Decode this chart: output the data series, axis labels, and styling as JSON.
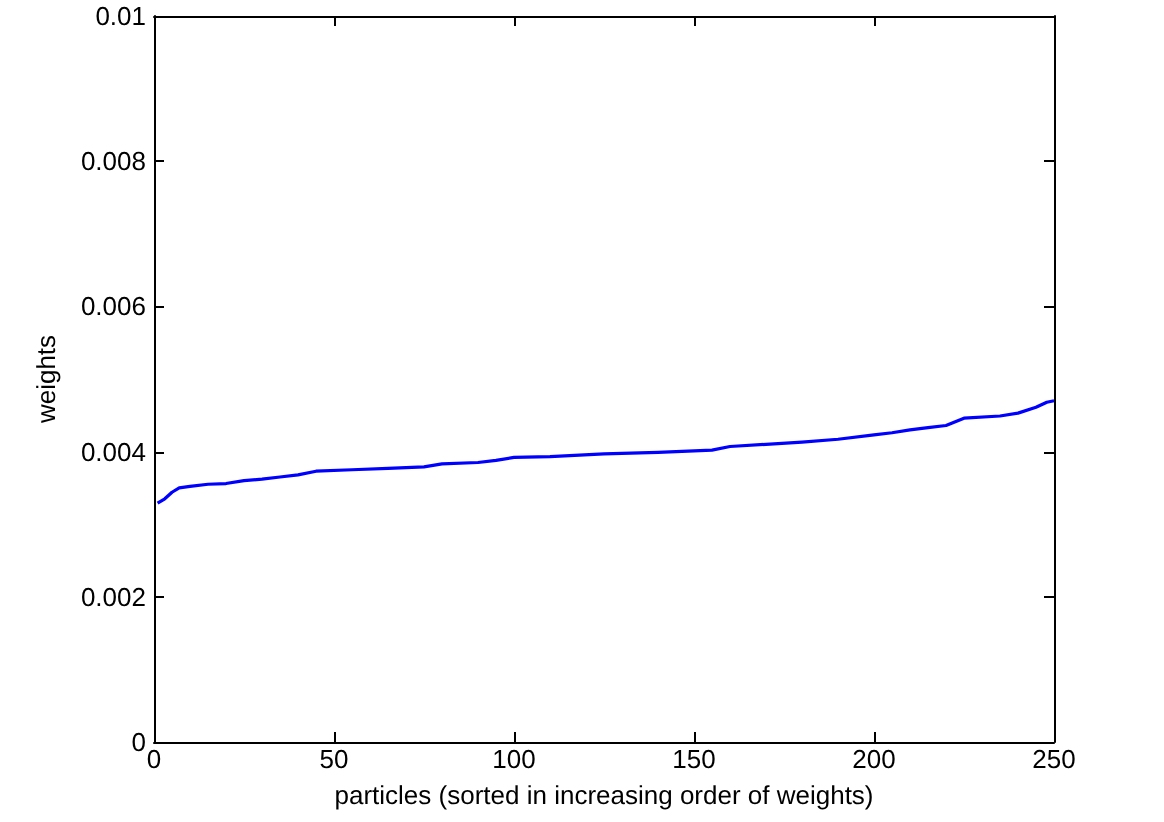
{
  "chart_data": {
    "type": "line",
    "xlabel": "particles (sorted in increasing order of weights)",
    "ylabel": "weights",
    "x": [
      1,
      3,
      5,
      7,
      10,
      15,
      20,
      25,
      30,
      35,
      40,
      45,
      55,
      65,
      75,
      80,
      90,
      95,
      100,
      110,
      125,
      140,
      150,
      155,
      160,
      170,
      180,
      190,
      200,
      205,
      210,
      215,
      220,
      225,
      235,
      240,
      245,
      248,
      250
    ],
    "series": [
      {
        "color": "#0000ff",
        "values": [
          0.00329,
          0.00335,
          0.00344,
          0.0035,
          0.00352,
          0.00355,
          0.00356,
          0.0036,
          0.00362,
          0.00365,
          0.00368,
          0.00373,
          0.00375,
          0.00377,
          0.00379,
          0.00383,
          0.00385,
          0.00388,
          0.00392,
          0.00393,
          0.00397,
          0.00399,
          0.00401,
          0.00402,
          0.00407,
          0.0041,
          0.00413,
          0.00417,
          0.00423,
          0.00426,
          0.0043,
          0.00433,
          0.00436,
          0.00446,
          0.00449,
          0.00453,
          0.00461,
          0.00468,
          0.0047
        ]
      }
    ],
    "xlim": [
      0,
      250
    ],
    "xticks": [
      0,
      50,
      100,
      150,
      200,
      250
    ],
    "ylim": [
      0,
      0.01
    ],
    "yticks": [
      0,
      0.002,
      0.004,
      0.006,
      0.008,
      0.01
    ],
    "grid": false,
    "marker": "none",
    "line_style": "solid"
  }
}
